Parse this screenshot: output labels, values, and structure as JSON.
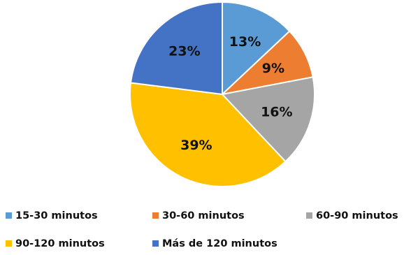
{
  "chart_data": {
    "type": "pie",
    "title": "",
    "legend_position": "bottom",
    "slices": [
      {
        "name": "15-30 minutos",
        "value": 13,
        "label": "13%",
        "color": "#5B9BD5"
      },
      {
        "name": "30-60 minutos",
        "value": 9,
        "label": "9%",
        "color": "#ED7D31"
      },
      {
        "name": "60-90 minutos",
        "value": 16,
        "label": "16%",
        "color": "#A5A5A5"
      },
      {
        "name": "90-120 minutos",
        "value": 39,
        "label": "39%",
        "color": "#FFC000"
      },
      {
        "name": "Más de 120 minutos",
        "value": 23,
        "label": "23%",
        "color": "#4472C4"
      }
    ]
  }
}
